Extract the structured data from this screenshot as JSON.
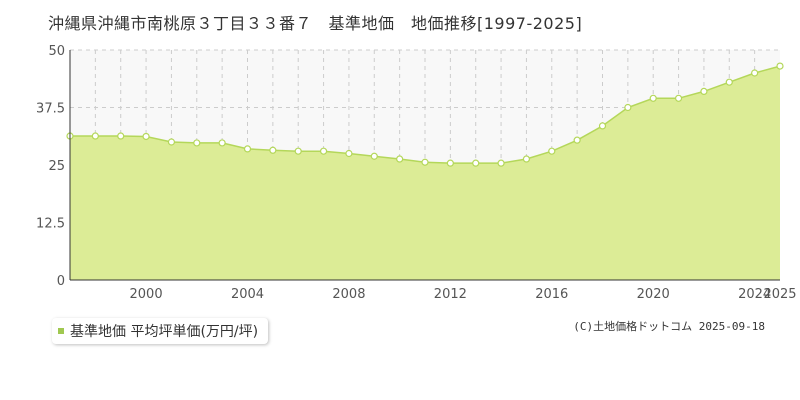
{
  "title": "沖縄県沖縄市南桃原３丁目３３番７　基準地価　地価推移[1997-2025]",
  "legend": {
    "label": "基準地価 平均坪単価(万円/坪)"
  },
  "credit": "(C)土地価格ドットコム 2025-09-18",
  "colors": {
    "area_fill": "#dcec96",
    "line": "#b4d75a",
    "marker_fill": "#ffffff",
    "marker_stroke": "#b4d75a",
    "upper_band": "#f8f8f8",
    "grid": "#cccccc"
  },
  "chart_data": {
    "type": "area",
    "x": [
      1997,
      1998,
      1999,
      2000,
      2001,
      2002,
      2003,
      2004,
      2005,
      2006,
      2007,
      2008,
      2009,
      2010,
      2011,
      2012,
      2013,
      2014,
      2015,
      2016,
      2017,
      2018,
      2019,
      2020,
      2021,
      2022,
      2023,
      2024,
      2025
    ],
    "series": [
      {
        "name": "基準地価 平均坪単価(万円/坪)",
        "values": [
          31.3,
          31.3,
          31.3,
          31.2,
          30.0,
          29.8,
          29.8,
          28.5,
          28.2,
          28.0,
          28.0,
          27.5,
          26.9,
          26.3,
          25.6,
          25.4,
          25.4,
          25.4,
          26.3,
          28.0,
          30.4,
          33.5,
          37.5,
          39.5,
          39.5,
          41.0,
          43.0,
          45.0,
          46.5
        ]
      }
    ],
    "xticks": [
      "2000",
      "2004",
      "2008",
      "2012",
      "2016",
      "2020",
      "2024",
      "2025"
    ],
    "xtick_values": [
      2000,
      2004,
      2008,
      2012,
      2016,
      2020,
      2024,
      2025
    ],
    "yticks": [
      "0",
      "12.5",
      "25",
      "37.5",
      "50"
    ],
    "ytick_values": [
      0,
      12.5,
      25,
      37.5,
      50
    ],
    "xlim": [
      1997,
      2025
    ],
    "ylim": [
      0,
      50
    ],
    "grid": true
  }
}
